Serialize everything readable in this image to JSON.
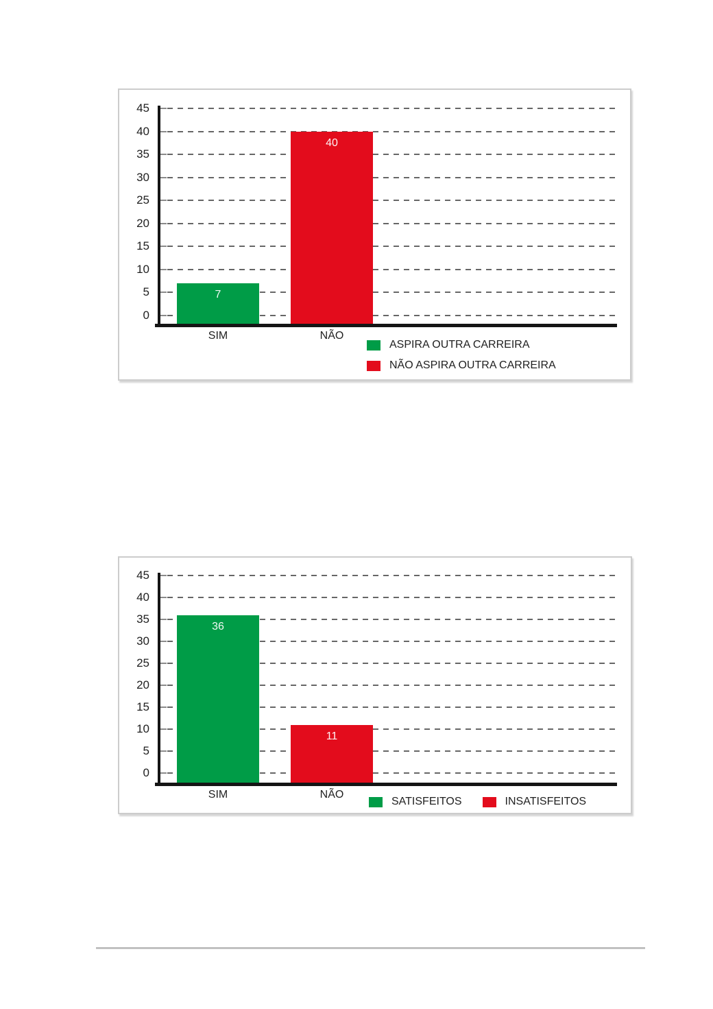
{
  "page": {
    "background": "#ffffff",
    "divider_color": "#b3b3b3"
  },
  "palette": {
    "green": "#009C47",
    "red": "#E30C1C",
    "grid": "#666666",
    "axis": "#151515",
    "text": "#1f1f1f",
    "bar_label": "#ffffff",
    "panel_border": "#cccccc"
  },
  "chart_data": [
    {
      "type": "bar",
      "title": "",
      "xlabel": "",
      "ylabel": "",
      "categories": [
        "SIM",
        "NÃO"
      ],
      "values": [
        7,
        40
      ],
      "value_labels": [
        "7",
        "40"
      ],
      "bar_colors": [
        "#009C47",
        "#E30C1C"
      ],
      "ylim": [
        0,
        45
      ],
      "y_ticks": [
        45,
        40,
        35,
        30,
        25,
        20,
        15,
        10,
        5,
        0
      ],
      "grid": "horizontal-dashed",
      "legend_position": "bottom-right-stacked",
      "legend": [
        {
          "label": "ASPIRA OUTRA CARREIRA",
          "color": "#009C47"
        },
        {
          "label": "NÃO ASPIRA OUTRA CARREIRA",
          "color": "#E30C1C"
        }
      ]
    },
    {
      "type": "bar",
      "title": "",
      "xlabel": "",
      "ylabel": "",
      "categories": [
        "SIM",
        "NÃO"
      ],
      "values": [
        36,
        11
      ],
      "value_labels": [
        "36",
        "11"
      ],
      "bar_colors": [
        "#009C47",
        "#E30C1C"
      ],
      "ylim": [
        0,
        45
      ],
      "y_ticks": [
        45,
        40,
        35,
        30,
        25,
        20,
        15,
        10,
        5,
        0
      ],
      "grid": "horizontal-dashed",
      "legend_position": "bottom-right-row",
      "legend": [
        {
          "label": "SATISFEITOS",
          "color": "#009C47"
        },
        {
          "label": "INSATISFEITOS",
          "color": "#E30C1C"
        }
      ]
    }
  ]
}
